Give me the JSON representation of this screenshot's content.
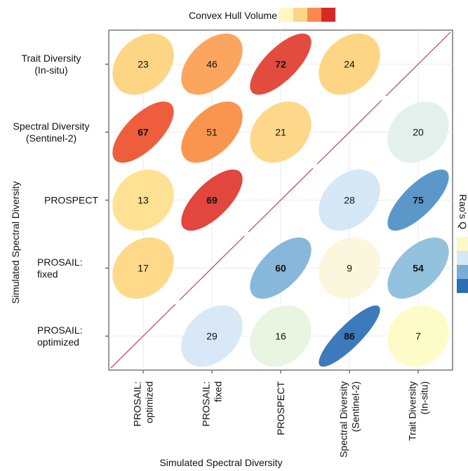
{
  "chart_data": {
    "type": "heatmap",
    "xlabel": "Simulated Spectral Diversity",
    "ylabel": "Simulated Spectral Diversity",
    "x_categories": [
      [
        "PROSAIL:",
        "optimized"
      ],
      [
        "PROSAIL:",
        "fixed"
      ],
      [
        "PROSPECT"
      ],
      [
        "Spectral Diversity",
        "(Sentinel-2)"
      ],
      [
        "Trait Diversity",
        "(In-situ)"
      ]
    ],
    "y_categories": [
      [
        "Trait Diversity",
        "(In-situ)"
      ],
      [
        "Spectral Diversity",
        "(Sentinel-2)"
      ],
      [
        "PROSPECT"
      ],
      [
        "PROSAIL:",
        "fixed"
      ],
      [
        "PROSAIL:",
        "optimized"
      ]
    ],
    "upper_triangle_legend": {
      "title": "Convex Hull Volume",
      "colors": [
        "#fdf9bf",
        "#fdd587",
        "#f98a4c",
        "#d92826"
      ]
    },
    "lower_triangle_legend": {
      "title": "Rao's Q",
      "colors": [
        "#fef8c6",
        "#d6e8f5",
        "#76aed6",
        "#2c6db3"
      ]
    },
    "grid": true,
    "cells": [
      {
        "row": 0,
        "col": 0,
        "value": 23,
        "bold": false,
        "color": "#fdd584",
        "eccentricity": 0.3
      },
      {
        "row": 0,
        "col": 1,
        "value": 46,
        "bold": false,
        "color": "#fba65e",
        "eccentricity": 0.46
      },
      {
        "row": 0,
        "col": 2,
        "value": 72,
        "bold": true,
        "color": "#e34b3e",
        "eccentricity": 0.72
      },
      {
        "row": 0,
        "col": 3,
        "value": 24,
        "bold": false,
        "color": "#fdd584",
        "eccentricity": 0.3
      },
      {
        "row": 1,
        "col": 0,
        "value": 67,
        "bold": true,
        "color": "#ee5e3d",
        "eccentricity": 0.67
      },
      {
        "row": 1,
        "col": 1,
        "value": 51,
        "bold": false,
        "color": "#fa9550",
        "eccentricity": 0.51
      },
      {
        "row": 1,
        "col": 2,
        "value": 21,
        "bold": false,
        "color": "#fed88a",
        "eccentricity": 0.26
      },
      {
        "row": 1,
        "col": 4,
        "value": 20,
        "bold": false,
        "color": "#e4f0ec",
        "eccentricity": 0.24
      },
      {
        "row": 2,
        "col": 0,
        "value": 13,
        "bold": false,
        "color": "#fee192",
        "eccentricity": 0.18
      },
      {
        "row": 2,
        "col": 1,
        "value": 69,
        "bold": true,
        "color": "#e2463c",
        "eccentricity": 0.69
      },
      {
        "row": 2,
        "col": 3,
        "value": 28,
        "bold": false,
        "color": "#d6e7f6",
        "eccentricity": 0.33
      },
      {
        "row": 2,
        "col": 4,
        "value": 75,
        "bold": true,
        "color": "#5b98c9",
        "eccentricity": 0.75
      },
      {
        "row": 3,
        "col": 0,
        "value": 17,
        "bold": false,
        "color": "#fed98a",
        "eccentricity": 0.22
      },
      {
        "row": 3,
        "col": 2,
        "value": 60,
        "bold": true,
        "color": "#87b8dc",
        "eccentricity": 0.6
      },
      {
        "row": 3,
        "col": 3,
        "value": 9,
        "bold": false,
        "color": "#fbf7dc",
        "eccentricity": 0.14
      },
      {
        "row": 3,
        "col": 4,
        "value": 54,
        "bold": true,
        "color": "#93c2df",
        "eccentricity": 0.54
      },
      {
        "row": 4,
        "col": 1,
        "value": 29,
        "bold": false,
        "color": "#d9e8f6",
        "eccentricity": 0.34
      },
      {
        "row": 4,
        "col": 2,
        "value": 16,
        "bold": false,
        "color": "#e9f4e1",
        "eccentricity": 0.21
      },
      {
        "row": 4,
        "col": 3,
        "value": 86,
        "bold": true,
        "color": "#3d7abb",
        "eccentricity": 0.86
      },
      {
        "row": 4,
        "col": 4,
        "value": 7,
        "bold": false,
        "color": "#fdfbc8",
        "eccentricity": 0.12
      }
    ],
    "diagonal_line_color": "#c23b4f"
  }
}
